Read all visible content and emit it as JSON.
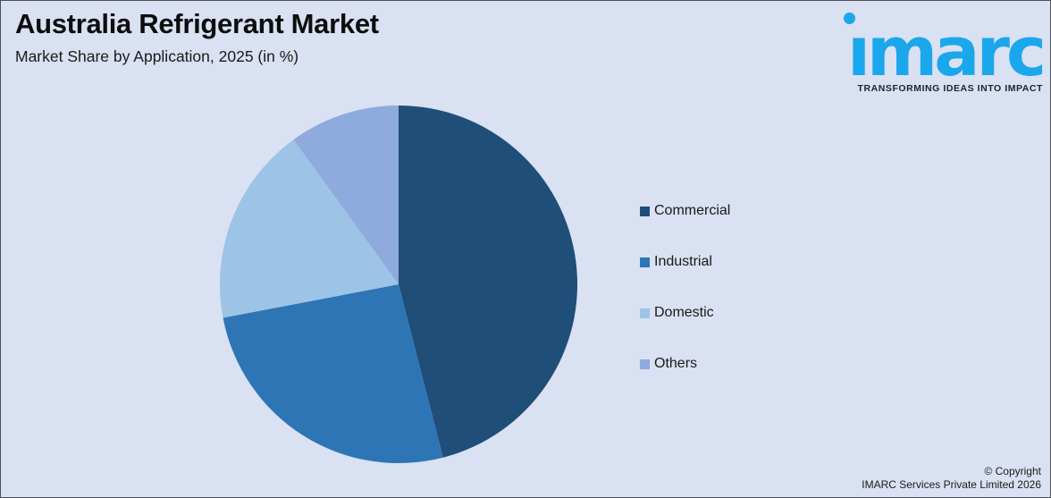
{
  "header": {
    "title": "Australia Refrigerant Market",
    "subtitle": "Market Share by Application, 2025 (in %)"
  },
  "logo": {
    "wordmark": "ımarc",
    "tagline": "TRANSFORMING IDEAS INTO IMPACT",
    "brand_color": "#1AA7EC"
  },
  "chart_data": {
    "type": "pie",
    "title": "Market Share by Application, 2025 (in %)",
    "categories": [
      "Commercial",
      "Industrial",
      "Domestic",
      "Others"
    ],
    "values": [
      46,
      26,
      18,
      10
    ],
    "unit": "%",
    "colors": [
      "#1F4E79",
      "#2E75B6",
      "#9DC3E6",
      "#8FAADC"
    ],
    "start_angle_deg": 0,
    "direction": "clockwise",
    "legend_position": "right",
    "data_labels_shown": false
  },
  "legend": {
    "items": [
      {
        "label": "Commercial",
        "color": "#1F4E79"
      },
      {
        "label": "Industrial",
        "color": "#2E75B6"
      },
      {
        "label": "Domestic",
        "color": "#9DC3E6"
      },
      {
        "label": "Others",
        "color": "#8FAADC"
      }
    ]
  },
  "footer": {
    "copyright_line1": "© Copyright",
    "copyright_line2": "IMARC Services Private Limited 2026"
  },
  "colors": {
    "background": "#D9E1F2",
    "title_text": "#0d0d0d",
    "body_text": "#1a1a1a"
  }
}
